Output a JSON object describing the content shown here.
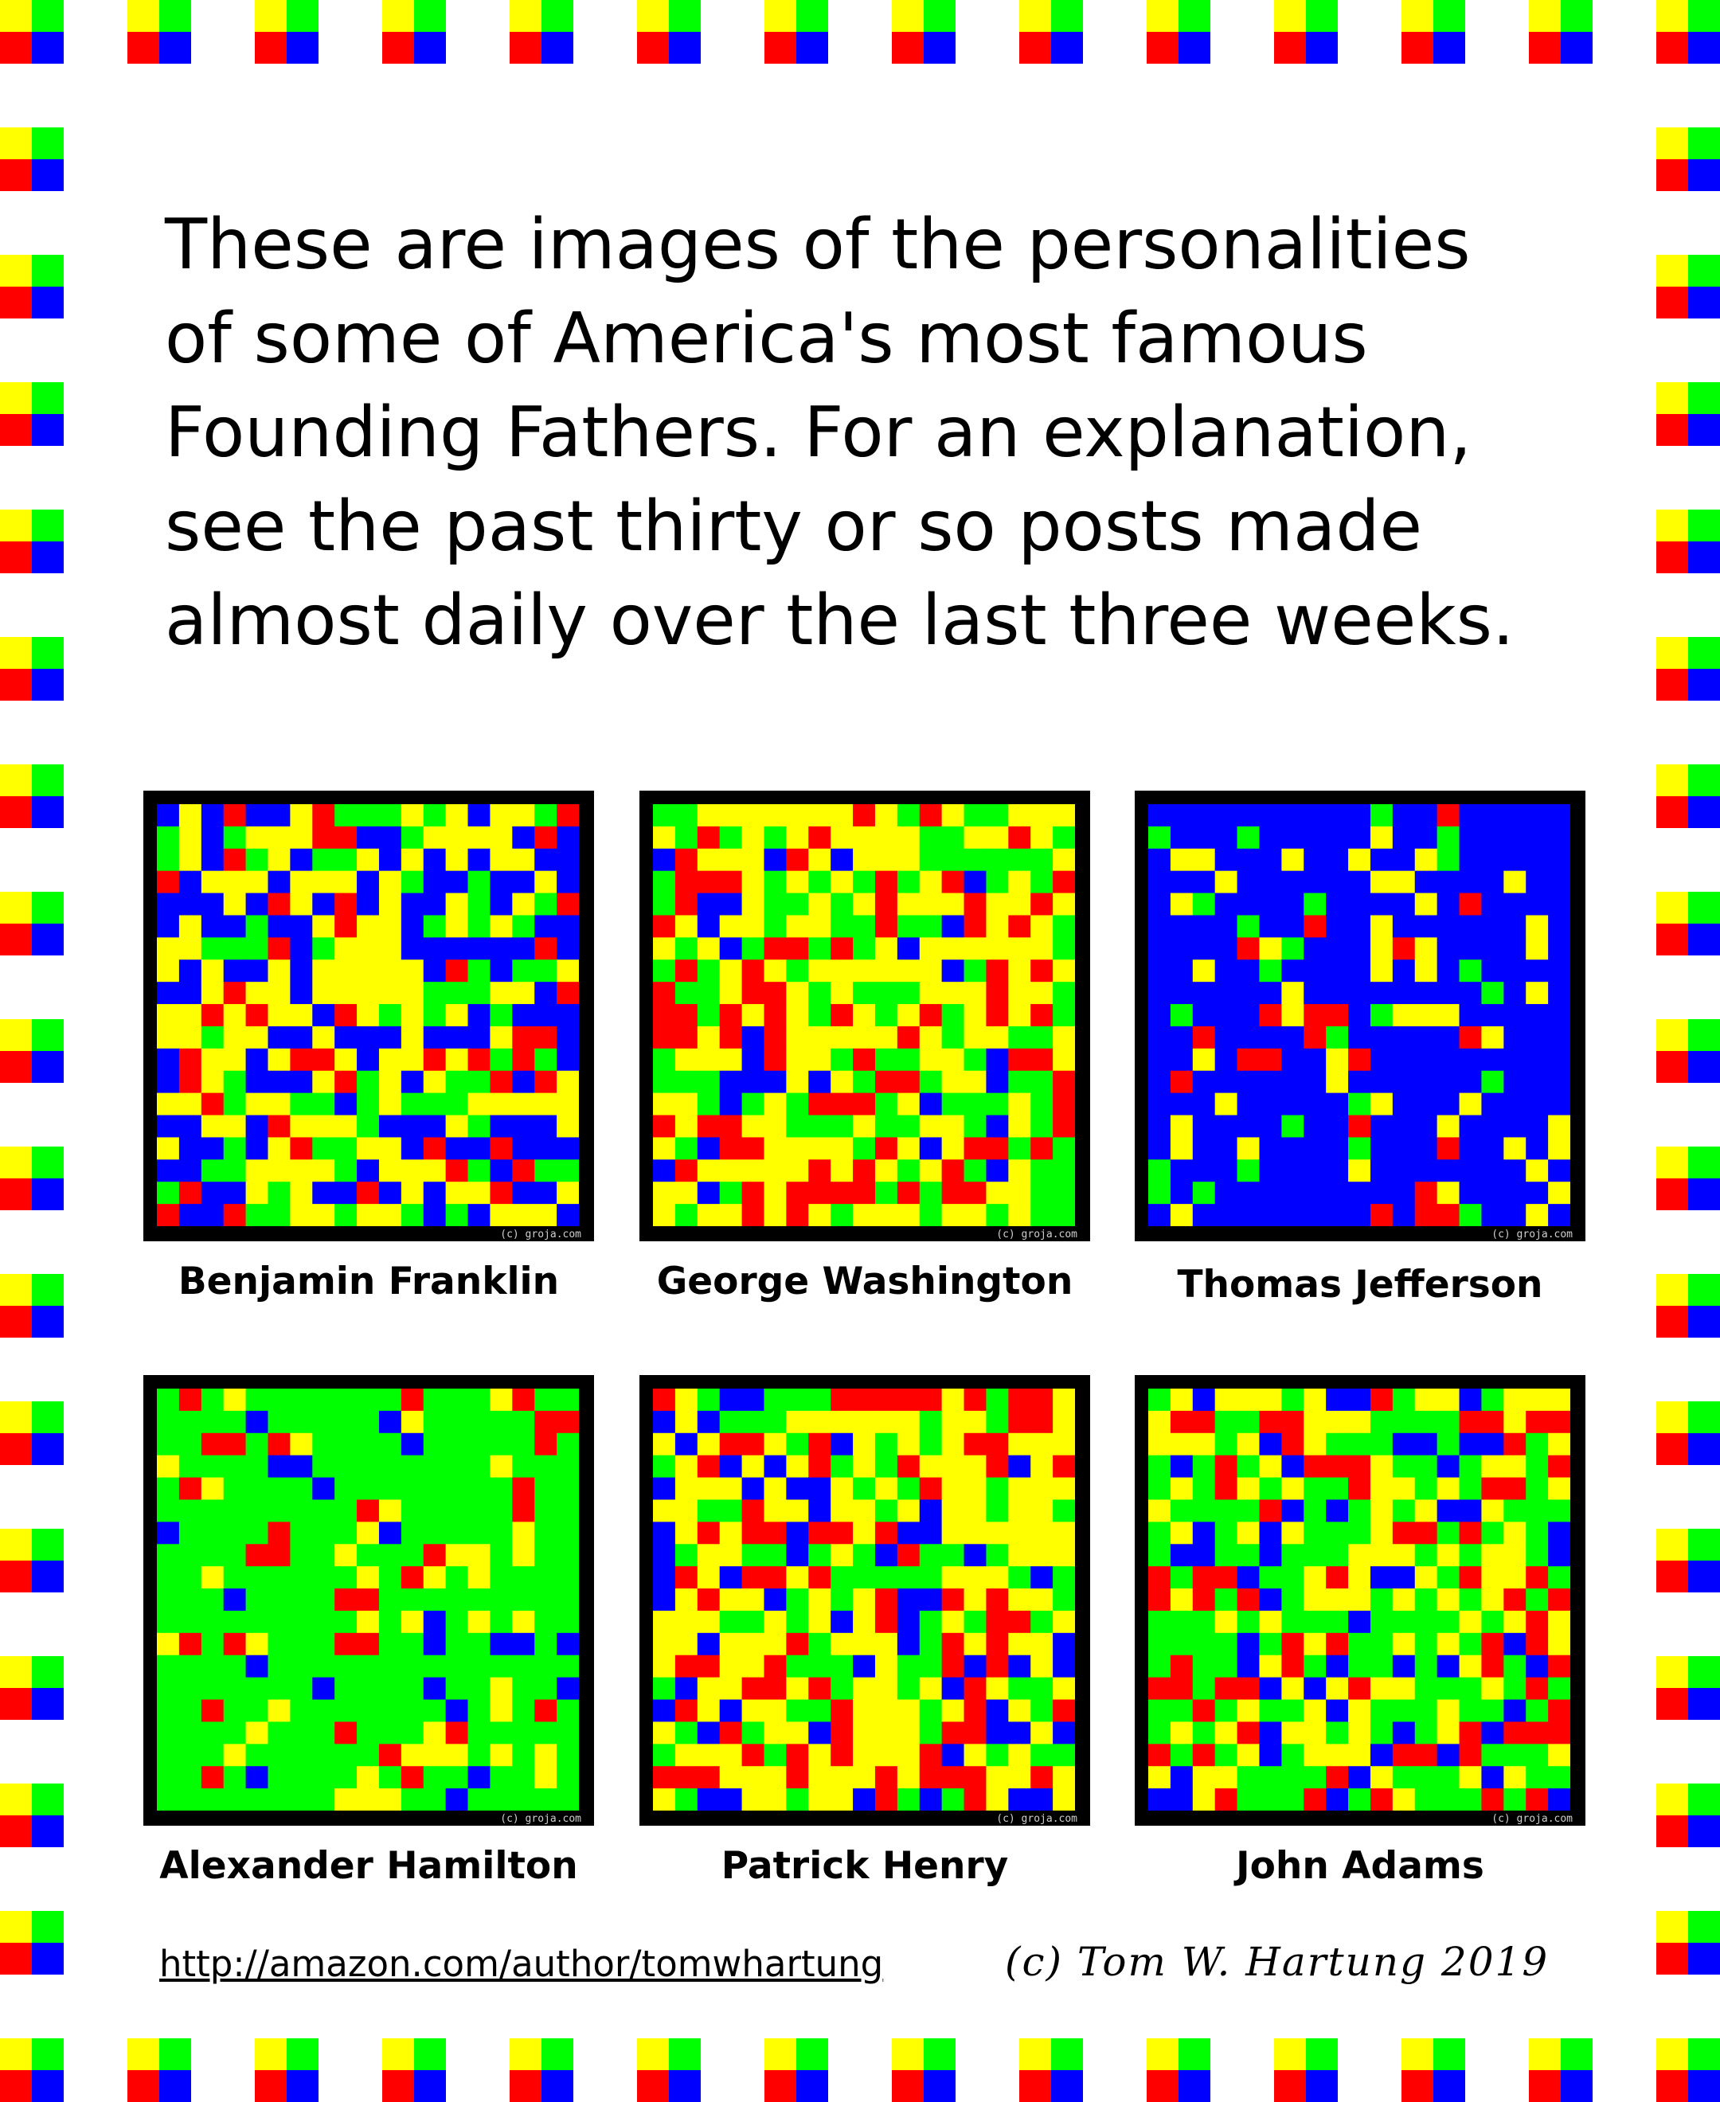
{
  "intro": {
    "lines": [
      "These are images of the personalities",
      "of some of America's most famous",
      "Founding Fathers.  For an explanation,",
      "see the past thirty or so posts made",
      "almost daily over the last three weeks."
    ]
  },
  "palette": {
    "yellow": "#ffff00",
    "green": "#00ff00",
    "red": "#ff0000",
    "blue": "#0000ff",
    "frame": "#000000"
  },
  "portraits": [
    {
      "name": "Benjamin Franklin",
      "dominant": "mixed yellow and blue",
      "watermark": "(c) groja.com"
    },
    {
      "name": "George Washington",
      "dominant": "mixed yellow, green and red",
      "watermark": "(c) groja.com"
    },
    {
      "name": "Thomas Jefferson",
      "dominant": "blue",
      "watermark": "(c) groja.com"
    },
    {
      "name": "Alexander Hamilton",
      "dominant": "green",
      "watermark": "(c) groja.com"
    },
    {
      "name": "Patrick Henry",
      "dominant": "mixed yellow and red",
      "watermark": "(c) groja.com"
    },
    {
      "name": "John Adams",
      "dominant": "mixed green and yellow",
      "watermark": "(c) groja.com"
    }
  ],
  "footer": {
    "link": "http://amazon.com/author/tomwhartung",
    "copyright": "(c) Tom W. Hartung 2019"
  }
}
